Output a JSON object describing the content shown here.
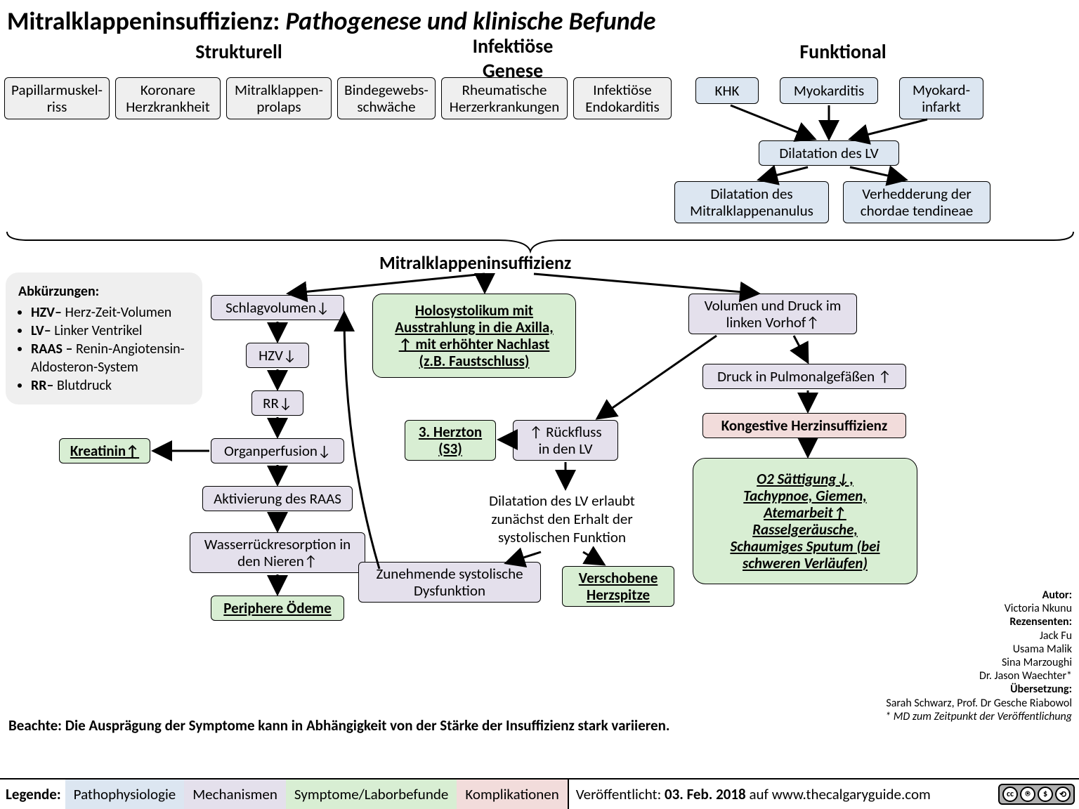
{
  "title_main": "Mitralklappeninsuffizienz:",
  "title_sub": "Pathogenese und klinische Befunde",
  "sections": {
    "strukturell": "Strukturell",
    "infektioes": "Infektiöse\nGenese",
    "funktional": "Funktional"
  },
  "top_boxes": {
    "papillar": "Papillarmuskel-\nriss",
    "khk_cor": "Koronare\nHerzkrankheit",
    "prolaps": "Mitralklappen-\nprolaps",
    "binde": "Bindegewebs-\nschwäche",
    "rheuma": "Rheumatische\nHerzerkrankungen",
    "endokard": "Infektiöse\nEndokarditis",
    "khk": "KHK",
    "myokarditis": "Myokarditis",
    "infarkt": "Myokard-\ninfarkt"
  },
  "func_chain": {
    "dilat_lv": "Dilatation des LV",
    "dilat_anulus": "Dilatation des\nMitralklappenanulus",
    "chordae": "Verhedderung der\nchordae tendineae"
  },
  "center_label": "Mitralklappeninsuffizienz",
  "abbr": {
    "header": "Abkürzungen:",
    "items": [
      "<b>HZV–</b> Herz-Zeit-Volumen",
      "<b>LV–</b> Linker Ventrikel",
      "<b>RAAS –</b> Renin-Angiotensin- Aldosteron-System",
      "<b>RR–</b> Blutdruck"
    ]
  },
  "left_chain": {
    "schlag": "Schlagvolumen↓",
    "hzv": "HZV↓",
    "rr": "RR↓",
    "organ": "Organperfusion↓",
    "raas": "Aktivierung des RAAS",
    "wasser": "Wasserrückresorption in\nden Nieren↑",
    "kreatinin": "Kreatinin↑",
    "oedeme": "Periphere Ödeme"
  },
  "mid": {
    "holo": "Holosystolikum mit\nAusstrahlung in die Axilla,\n↑ mit erhöhter Nachlast\n(z.B. Faustschluss)",
    "s3": "3. Herzton\n(S3)",
    "rueckfluss": "↑ Rückfluss\nin den LV",
    "dilat_text": "Dilatation des LV erlaubt\nzunächst den Erhalt der\nsystolischen Funktion",
    "sysdys": "Zunehmende systolische\nDysfunktion",
    "herzspitze": "Verschobene\nHerzspitze"
  },
  "right_chain": {
    "vol_druck": "Volumen und Druck im\nlinken Vorhof↑",
    "pulm": "Druck in Pulmonalgefäßen ↑",
    "kongestiv": "Kongestive Herzinsuffizienz",
    "o2": "O2 Sättigung↓,\nTachypnoe, Giemen,\nAtemarbeit↑\nRasselgeräusche,\nSchaumiges Sputum (bei\nschweren Verläufen)"
  },
  "credits": {
    "autor_lbl": "Autor:",
    "autor": "Victoria Nkunu",
    "rez_lbl": "Rezensenten:",
    "rez": [
      "Jack Fu",
      "Usama Malik",
      "Sina Marzoughi",
      "Dr. Jason Waechter*"
    ],
    "uebers_lbl": "Übersetzung:",
    "uebers": "Sarah Schwarz, Prof.  Dr Gesche Riabowol",
    "star": "* MD zum Zeitpunkt der Veröffentlichung"
  },
  "note": "Beachte: Die Ausprägung der Symptome kann in Abhängigkeit von der Stärke der Insuffizienz stark variieren.",
  "legend": {
    "label": "Legende:",
    "patho": "Pathophysiologie",
    "mech": "Mechanismen",
    "symp": "Symptome/Laborbefunde",
    "komp": "Komplikationen",
    "pub": "Veröffentlicht: <b>03. Feb. 2018</b> auf www.thecalguaryguide.com"
  },
  "colors": {
    "gray": "#efefef",
    "blue": "#dce6f1",
    "purple": "#e4e0ec",
    "green": "#d8eed3",
    "pink": "#f2dcdb"
  }
}
